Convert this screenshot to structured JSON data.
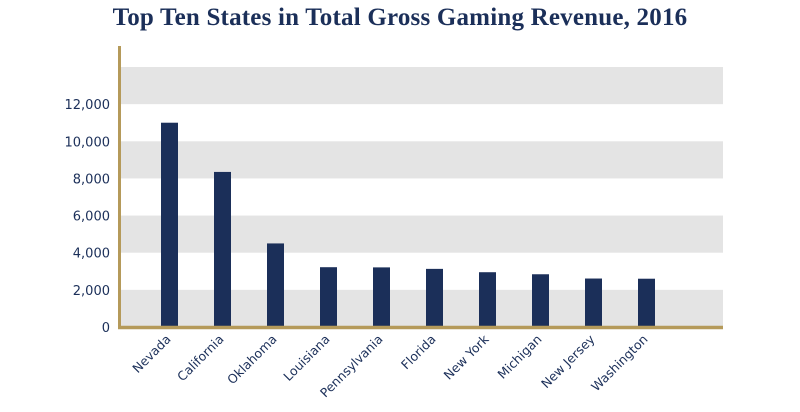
{
  "chart_data": {
    "type": "bar",
    "title": "Top Ten States in Total Gross Gaming Revenue, 2016",
    "xlabel": "",
    "ylabel": "",
    "categories": [
      "Nevada",
      "California",
      "Oklahoma",
      "Louisiana",
      "Pennsylvania",
      "Florida",
      "New York",
      "Michigan",
      "New Jersey",
      "Washington"
    ],
    "values": [
      11000,
      8350,
      4500,
      3220,
      3210,
      3130,
      2950,
      2840,
      2610,
      2600
    ],
    "ylim": [
      0,
      14000
    ],
    "yticks": [
      0,
      2000,
      4000,
      6000,
      8000,
      10000,
      12000
    ],
    "ytick_labels": [
      "0",
      "2,000",
      "4,000",
      "6,000",
      "8,000",
      "10,000",
      "12,000"
    ],
    "grid": "alternating horizontal bands",
    "legend": "none",
    "colors": {
      "bar": "#1b2f59",
      "axis": "#b59a5a",
      "band": "#e4e4e4",
      "text": "#1b2f59"
    }
  }
}
